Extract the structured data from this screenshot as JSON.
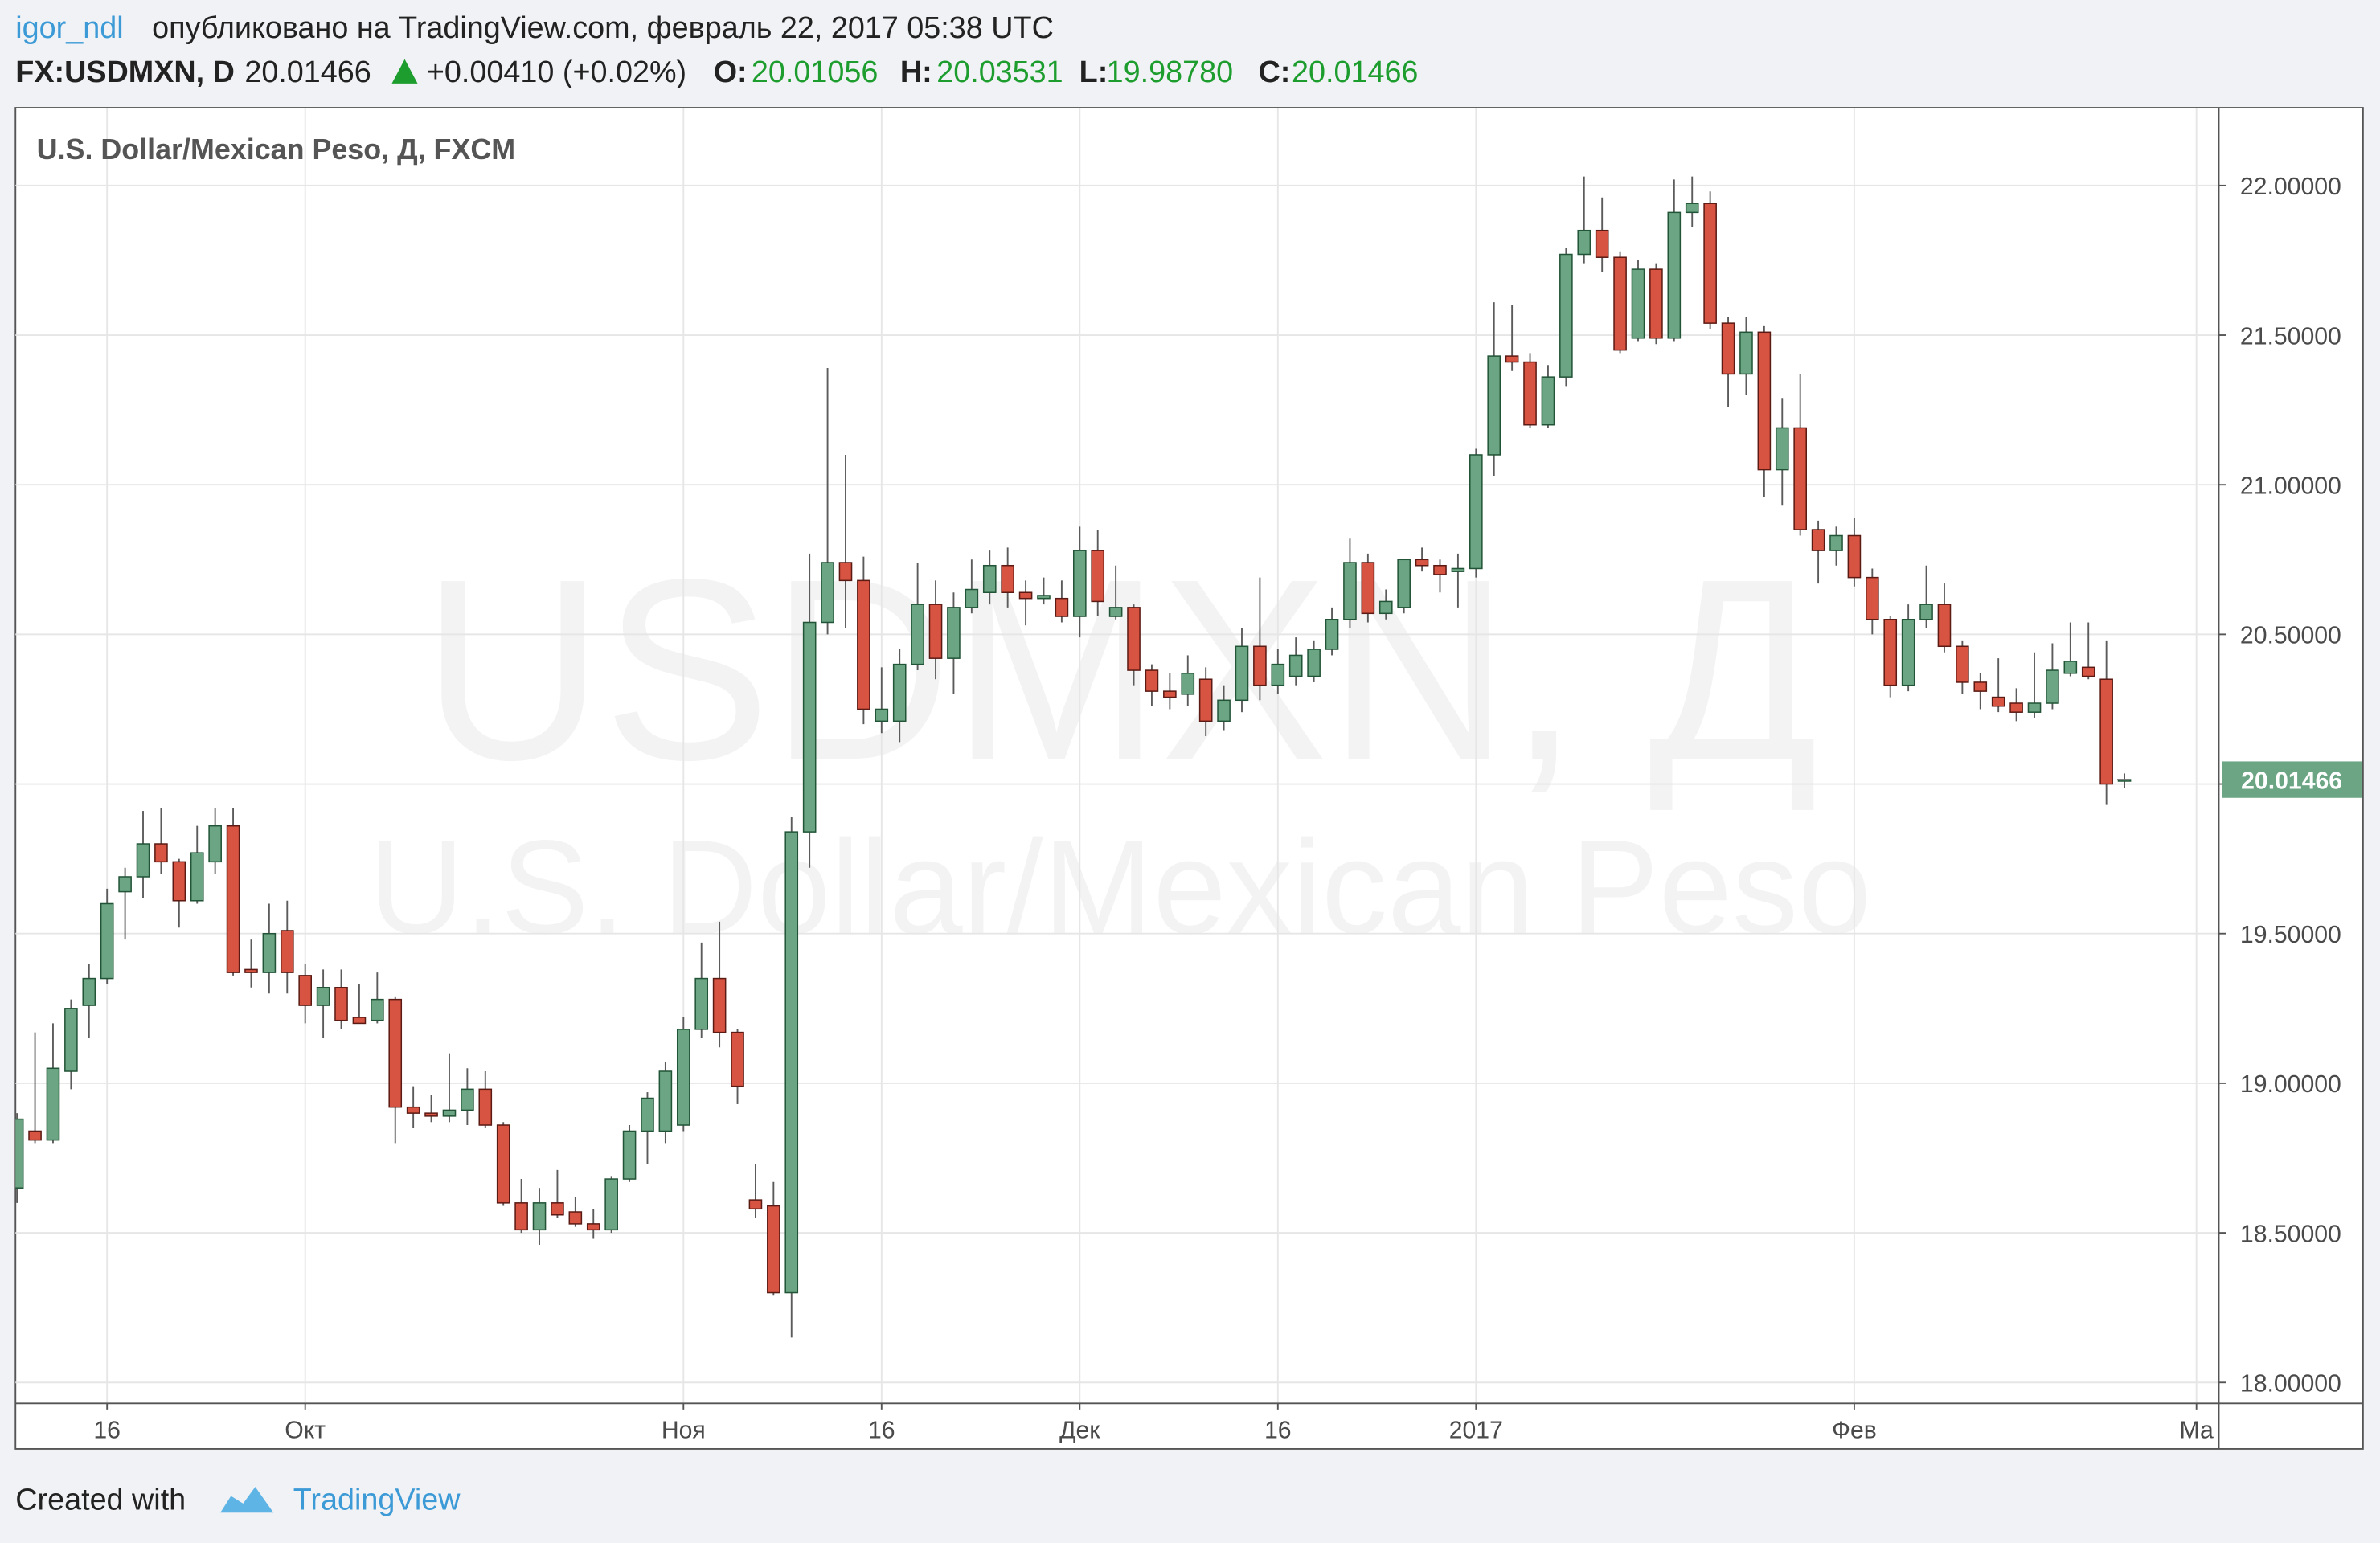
{
  "header": {
    "user": "igor_ndl",
    "published": "опубликовано на TradingView.com, февраль 22, 2017 05:38 UTC",
    "symbol": "FX:USDMXN, D",
    "price": "20.01466",
    "change": "+0.00410 (+0.02%)",
    "ohlc": [
      {
        "label": "O:",
        "value": "20.01056"
      },
      {
        "label": "H:",
        "value": "20.03531"
      },
      {
        "label": "L:",
        "value": "19.98780"
      },
      {
        "label": "C:",
        "value": "20.01466"
      }
    ]
  },
  "footer": {
    "created": "Created with",
    "brand": "TradingView"
  },
  "chart_data": {
    "type": "candlestick",
    "title": "U.S. Dollar/Mexican Peso, Д, FXCM",
    "watermark": [
      "USDMXN, Д",
      "U.S. Dollar/Mexican Peso"
    ],
    "up_color": "#6ba583",
    "down_color": "#d75442",
    "grid": true,
    "last_price": 20.01466,
    "ylim": [
      17.93,
      22.26
    ],
    "yticks": [
      {
        "value": 18,
        "label": "18.00000"
      },
      {
        "value": 18.5,
        "label": "18.50000"
      },
      {
        "value": 19,
        "label": "19.00000"
      },
      {
        "value": 19.5,
        "label": "19.50000"
      },
      {
        "value": 20,
        "label": "20.00000"
      },
      {
        "value": 20.5,
        "label": "20.50000"
      },
      {
        "value": 21,
        "label": "21.00000"
      },
      {
        "value": 21.5,
        "label": "21.50000"
      },
      {
        "value": 22,
        "label": "22.00000"
      }
    ],
    "categories": [
      null,
      null,
      null,
      null,
      null,
      "16",
      null,
      null,
      null,
      null,
      null,
      null,
      null,
      null,
      null,
      null,
      "Окт",
      null,
      null,
      null,
      null,
      null,
      null,
      null,
      null,
      null,
      null,
      null,
      null,
      null,
      null,
      null,
      null,
      null,
      null,
      null,
      null,
      "Ноя",
      null,
      null,
      null,
      null,
      null,
      null,
      null,
      null,
      null,
      null,
      "16",
      null,
      null,
      null,
      null,
      null,
      null,
      null,
      null,
      null,
      null,
      "Дек",
      null,
      null,
      null,
      null,
      null,
      null,
      null,
      null,
      null,
      null,
      "16",
      null,
      null,
      null,
      null,
      null,
      null,
      null,
      null,
      null,
      null,
      "2017",
      null,
      null,
      null,
      null,
      null,
      null,
      null,
      null,
      null,
      null,
      null,
      null,
      null,
      null,
      null,
      null,
      null,
      null,
      null,
      null,
      "Фев",
      null,
      null,
      null,
      null,
      null,
      null,
      null,
      null,
      null,
      null,
      null,
      null,
      null,
      null,
      null,
      null,
      null,
      null,
      "Ма"
    ],
    "open": [
      18.65,
      18.84,
      18.81,
      19.04,
      19.26,
      19.35,
      19.64,
      19.69,
      19.8,
      19.74,
      19.61,
      19.74,
      19.86,
      19.38,
      19.37,
      19.51,
      19.36,
      19.26,
      19.32,
      19.22,
      19.21,
      19.28,
      18.92,
      18.9,
      18.89,
      18.91,
      18.98,
      18.86,
      18.6,
      18.51,
      18.6,
      18.57,
      18.53,
      18.51,
      18.68,
      18.84,
      18.84,
      18.86,
      19.18,
      19.35,
      19.17,
      18.61,
      18.59,
      18.3,
      19.84,
      20.54,
      20.74,
      20.68,
      20.21,
      20.21,
      20.4,
      20.6,
      20.42,
      20.59,
      20.64,
      20.73,
      20.64,
      20.62,
      20.62,
      20.56,
      20.78,
      20.56,
      20.59,
      20.38,
      20.31,
      20.3,
      20.35,
      20.21,
      20.28,
      20.46,
      20.33,
      20.36,
      20.36,
      20.45,
      20.55,
      20.74,
      20.57,
      20.59,
      20.75,
      20.73,
      20.71,
      20.72,
      21.1,
      21.43,
      21.41,
      21.2,
      21.36,
      21.77,
      21.85,
      21.76,
      21.49,
      21.72,
      21.49,
      21.91,
      21.94,
      21.54,
      21.37,
      21.51,
      21.05,
      21.19,
      20.85,
      20.78,
      20.83,
      20.69,
      20.55,
      20.33,
      20.55,
      20.6,
      20.46,
      20.34,
      20.29,
      20.27,
      20.24,
      20.27,
      20.37,
      20.39,
      20.35,
      20.01056,
      null,
      null,
      null,
      null
    ],
    "high": [
      18.9,
      19.17,
      19.2,
      19.28,
      19.4,
      19.65,
      19.72,
      19.91,
      19.92,
      19.75,
      19.86,
      19.92,
      19.92,
      19.48,
      19.6,
      19.61,
      19.4,
      19.38,
      19.38,
      19.33,
      19.37,
      19.29,
      18.99,
      18.96,
      19.1,
      19.05,
      19.04,
      18.87,
      18.68,
      18.65,
      18.71,
      18.62,
      18.58,
      18.69,
      18.86,
      18.97,
      19.07,
      19.22,
      19.47,
      19.54,
      19.18,
      18.73,
      18.67,
      19.89,
      20.77,
      21.39,
      21.1,
      20.76,
      20.39,
      20.45,
      20.74,
      20.68,
      20.64,
      20.75,
      20.78,
      20.79,
      20.68,
      20.69,
      20.68,
      20.86,
      20.85,
      20.73,
      20.6,
      20.4,
      20.37,
      20.43,
      20.39,
      20.33,
      20.52,
      20.69,
      20.45,
      20.49,
      20.48,
      20.59,
      20.82,
      20.77,
      20.65,
      20.75,
      20.79,
      20.75,
      20.77,
      21.12,
      21.61,
      21.6,
      21.44,
      21.4,
      21.79,
      22.03,
      21.96,
      21.78,
      21.75,
      21.74,
      22.02,
      22.03,
      21.98,
      21.56,
      21.56,
      21.53,
      21.29,
      21.37,
      20.88,
      20.86,
      20.89,
      20.72,
      20.56,
      20.6,
      20.73,
      20.67,
      20.48,
      20.37,
      20.42,
      20.32,
      20.44,
      20.47,
      20.54,
      20.54,
      20.48,
      20.03531,
      null,
      null,
      null,
      null
    ],
    "low": [
      18.6,
      18.8,
      18.8,
      18.98,
      19.15,
      19.33,
      19.48,
      19.62,
      19.7,
      19.52,
      19.6,
      19.7,
      19.36,
      19.32,
      19.3,
      19.3,
      19.2,
      19.15,
      19.18,
      19.2,
      19.2,
      18.8,
      18.85,
      18.87,
      18.87,
      18.86,
      18.85,
      18.59,
      18.5,
      18.46,
      18.55,
      18.52,
      18.48,
      18.5,
      18.67,
      18.73,
      18.8,
      18.84,
      19.15,
      19.12,
      18.93,
      18.55,
      18.29,
      18.15,
      19.72,
      20.5,
      20.52,
      20.2,
      20.17,
      20.14,
      20.38,
      20.35,
      20.3,
      20.57,
      20.6,
      20.59,
      20.53,
      20.6,
      20.54,
      20.49,
      20.56,
      20.55,
      20.33,
      20.26,
      20.25,
      20.26,
      20.16,
      20.18,
      20.24,
      20.28,
      20.3,
      20.33,
      20.34,
      20.43,
      20.52,
      20.54,
      20.55,
      20.57,
      20.71,
      20.64,
      20.59,
      20.69,
      21.03,
      21.38,
      21.19,
      21.19,
      21.33,
      21.74,
      21.71,
      21.44,
      21.48,
      21.47,
      21.48,
      21.86,
      21.52,
      21.26,
      21.3,
      20.96,
      20.93,
      20.83,
      20.67,
      20.73,
      20.66,
      20.5,
      20.29,
      20.31,
      20.52,
      20.44,
      20.3,
      20.25,
      20.24,
      20.21,
      20.22,
      20.25,
      20.36,
      20.35,
      19.93,
      19.9878,
      null,
      null,
      null,
      null
    ],
    "close": [
      18.88,
      18.81,
      19.05,
      19.25,
      19.35,
      19.6,
      19.69,
      19.8,
      19.74,
      19.61,
      19.77,
      19.86,
      19.37,
      19.37,
      19.5,
      19.37,
      19.26,
      19.32,
      19.21,
      19.2,
      19.28,
      18.92,
      18.9,
      18.89,
      18.91,
      18.98,
      18.86,
      18.6,
      18.51,
      18.6,
      18.56,
      18.53,
      18.51,
      18.68,
      18.84,
      18.95,
      19.04,
      19.18,
      19.35,
      19.17,
      18.99,
      18.58,
      18.3,
      19.84,
      20.54,
      20.74,
      20.68,
      20.25,
      20.25,
      20.4,
      20.6,
      20.42,
      20.59,
      20.65,
      20.73,
      20.64,
      20.62,
      20.63,
      20.56,
      20.78,
      20.61,
      20.59,
      20.38,
      20.31,
      20.29,
      20.37,
      20.21,
      20.28,
      20.46,
      20.33,
      20.4,
      20.43,
      20.45,
      20.55,
      20.74,
      20.57,
      20.61,
      20.75,
      20.73,
      20.7,
      20.72,
      21.1,
      21.43,
      21.41,
      21.2,
      21.36,
      21.77,
      21.85,
      21.76,
      21.45,
      21.72,
      21.49,
      21.91,
      21.94,
      21.54,
      21.37,
      21.51,
      21.05,
      21.19,
      20.85,
      20.78,
      20.83,
      20.69,
      20.55,
      20.33,
      20.55,
      20.6,
      20.46,
      20.34,
      20.31,
      20.26,
      20.24,
      20.27,
      20.38,
      20.41,
      20.36,
      20.0,
      20.01466,
      null,
      null,
      null,
      null
    ]
  }
}
